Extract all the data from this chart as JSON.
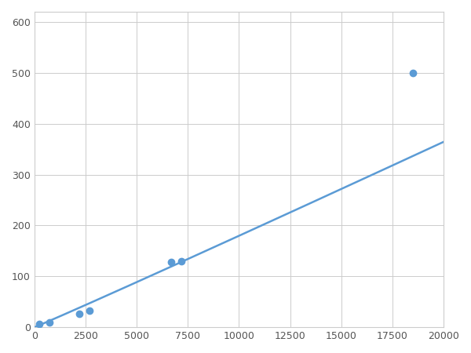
{
  "x_points": [
    250,
    750,
    2200,
    2700,
    6700,
    7200,
    18500
  ],
  "y_points": [
    7,
    10,
    27,
    32,
    128,
    130,
    500
  ],
  "line_color": "#5B9BD5",
  "marker_color": "#5B9BD5",
  "marker_size": 6,
  "linewidth": 1.8,
  "xlim": [
    0,
    20000
  ],
  "ylim": [
    0,
    620
  ],
  "xticks": [
    0,
    2500,
    5000,
    7500,
    10000,
    12500,
    15000,
    17500,
    20000
  ],
  "yticks": [
    0,
    100,
    200,
    300,
    400,
    500,
    600
  ],
  "grid": true,
  "background_color": "#ffffff",
  "figsize": [
    6.0,
    4.5
  ],
  "dpi": 100
}
